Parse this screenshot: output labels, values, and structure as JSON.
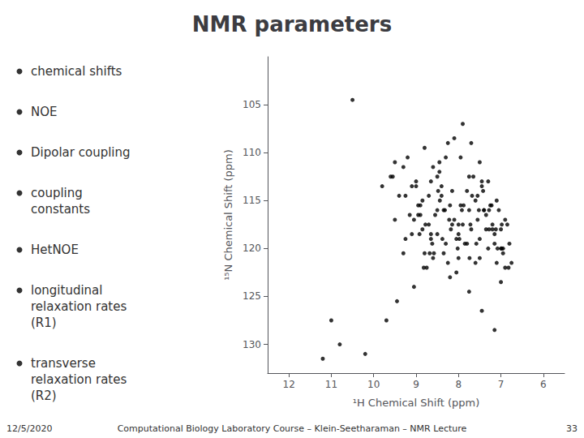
{
  "chart_data": {
    "type": "scatter",
    "title": "NMR parameters",
    "bullets": [
      "chemical shifts",
      "NOE",
      "Dipolar coupling",
      "coupling\nconstants",
      "HetNOE",
      "longitudinal\nrelaxation rates\n(R1)",
      "transverse\nrelaxation rates\n(R2)"
    ],
    "footer": [
      "12/5/2020",
      "Computational Biology Laboratory Course – Klein-Seetharaman – NMR Lecture",
      "33"
    ],
    "xlabel": "¹H Chemical Shift (ppm)",
    "ylabel": "¹⁵N Chemical Shift (ppm)",
    "xlim": [
      12.5,
      5.5
    ],
    "ylim": [
      133,
      100
    ],
    "xticks": [
      12,
      11,
      10,
      9,
      8,
      7,
      6
    ],
    "yticks": [
      105,
      110,
      115,
      120,
      125,
      130
    ],
    "grid": false,
    "color": "#000000",
    "marker": "circle",
    "x": [
      11.0,
      10.5,
      9.8,
      9.5,
      9.2,
      9.0,
      8.9,
      8.85,
      8.8,
      8.75,
      8.7,
      8.65,
      8.6,
      8.55,
      8.5,
      8.45,
      8.4,
      8.35,
      8.3,
      8.25,
      8.2,
      8.15,
      8.1,
      8.05,
      8.0,
      7.95,
      7.9,
      7.85,
      7.8,
      7.75,
      7.7,
      7.65,
      7.6,
      7.55,
      7.5,
      7.45,
      7.4,
      7.35,
      7.3,
      7.25,
      7.2,
      7.15,
      7.1,
      7.05,
      7.0,
      6.95,
      6.9,
      6.85,
      6.8,
      6.75,
      9.3,
      9.1,
      8.95,
      8.78,
      8.62,
      8.48,
      8.32,
      8.18,
      8.02,
      7.88,
      7.72,
      7.58,
      7.42,
      7.28,
      7.12,
      6.98,
      6.82,
      9.6,
      9.4,
      9.15,
      8.92,
      8.68,
      8.44,
      8.22,
      7.98,
      7.74,
      7.52,
      7.28,
      7.08,
      8.1,
      8.3,
      8.5,
      8.7,
      8.9,
      9.1,
      9.3,
      7.9,
      7.7,
      7.5,
      7.3,
      7.1,
      6.9,
      8.8,
      8.6,
      8.4,
      8.2,
      8.0,
      7.8,
      7.6,
      7.4,
      7.2,
      7.0,
      10.2,
      10.8,
      11.2,
      9.7,
      9.45,
      9.05,
      8.82,
      8.58,
      8.38,
      8.15,
      7.92,
      7.68,
      7.45,
      7.22,
      6.98,
      8.25,
      8.45,
      8.65,
      8.85,
      9.05,
      9.25,
      7.95,
      7.75,
      7.55,
      7.35,
      7.15,
      6.95,
      9.5,
      9.0,
      8.5,
      8.0,
      7.5,
      7.0,
      9.55,
      9.25,
      8.95,
      8.65,
      8.35,
      8.05,
      7.75,
      7.45,
      7.15
    ],
    "values": [
      127.5,
      104.5,
      113.5,
      117.0,
      110.5,
      113.0,
      115.5,
      118.0,
      120.5,
      122.0,
      117.5,
      119.0,
      121.0,
      116.5,
      118.5,
      112.0,
      114.5,
      116.0,
      119.5,
      121.5,
      123.0,
      114.0,
      117.0,
      119.0,
      121.0,
      115.5,
      117.5,
      119.5,
      114.0,
      116.0,
      118.0,
      112.5,
      115.0,
      117.0,
      119.0,
      113.5,
      116.0,
      118.0,
      120.0,
      115.5,
      117.5,
      119.5,
      121.5,
      116.0,
      118.0,
      120.0,
      122.0,
      117.5,
      119.5,
      121.5,
      111.5,
      113.5,
      115.5,
      117.5,
      119.5,
      114.0,
      116.0,
      118.0,
      120.0,
      115.5,
      117.5,
      119.5,
      114.0,
      116.0,
      118.0,
      120.0,
      122.0,
      112.5,
      114.5,
      116.5,
      118.5,
      120.5,
      115.0,
      117.0,
      119.0,
      121.0,
      116.0,
      118.0,
      120.0,
      108.5,
      110.5,
      112.5,
      114.5,
      116.5,
      118.5,
      120.5,
      107.0,
      109.0,
      111.0,
      113.0,
      115.0,
      117.0,
      109.5,
      111.5,
      113.5,
      115.5,
      117.5,
      119.5,
      121.5,
      116.0,
      118.0,
      120.0,
      131.0,
      130.0,
      131.5,
      127.5,
      125.5,
      124.0,
      122.0,
      120.5,
      119.0,
      117.5,
      116.0,
      114.5,
      113.0,
      115.5,
      117.5,
      109.0,
      111.0,
      113.0,
      115.0,
      117.0,
      119.0,
      110.5,
      112.5,
      114.5,
      116.5,
      118.5,
      120.5,
      111.0,
      113.5,
      116.0,
      118.5,
      121.0,
      123.5,
      112.5,
      114.5,
      116.5,
      118.5,
      120.5,
      122.5,
      124.5,
      126.5,
      128.5
    ]
  }
}
